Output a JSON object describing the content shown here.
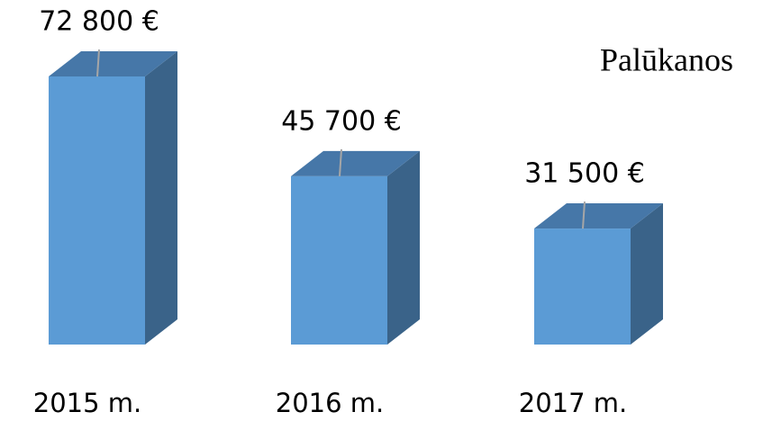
{
  "chart_data": {
    "type": "bar3d",
    "title": "Palūkanos",
    "categories": [
      "2015 m.",
      "2016 m.",
      "2017 m."
    ],
    "values": [
      72800,
      45700,
      31500
    ],
    "value_labels": [
      "72 800 €",
      "45 700 €",
      "31 500 €"
    ],
    "colors": {
      "front": "#5b9bd5",
      "top": "#4677a8",
      "side": "#3a6389"
    }
  }
}
